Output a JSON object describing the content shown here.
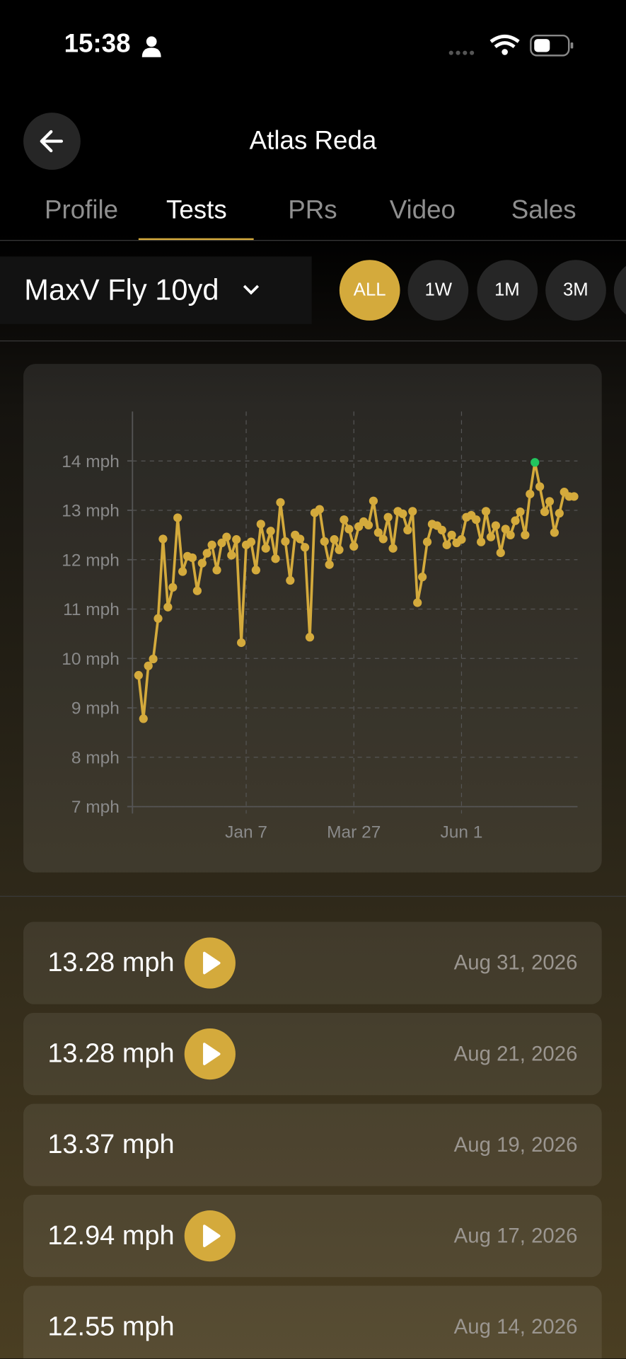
{
  "status_bar": {
    "time": "15:38"
  },
  "header": {
    "title": "Atlas Reda"
  },
  "tabs": [
    "Profile",
    "Tests",
    "PRs",
    "Video",
    "Sales"
  ],
  "active_tab": 1,
  "test_selector": {
    "label": "MaxV Fly 10yd"
  },
  "ranges": [
    "ALL",
    "1W",
    "1M",
    "3M",
    null
  ],
  "active_range": 0,
  "chart_data": {
    "type": "line",
    "color": "#d4aa3c",
    "highlight_color": "#22c55e",
    "grid": true,
    "ylim": [
      7,
      15
    ],
    "yticks": [
      {
        "value": 7,
        "label": "7 mph"
      },
      {
        "value": 8,
        "label": "8 mph"
      },
      {
        "value": 9,
        "label": "9 mph"
      },
      {
        "value": 10,
        "label": "10 mph"
      },
      {
        "value": 11,
        "label": "11 mph"
      },
      {
        "value": 12,
        "label": "12 mph"
      },
      {
        "value": 13,
        "label": "13 mph"
      },
      {
        "value": 14,
        "label": "14 mph"
      }
    ],
    "categories": [
      null,
      null,
      null,
      null,
      null,
      null,
      null,
      null,
      null,
      null,
      null,
      null,
      null,
      null,
      null,
      null,
      null,
      null,
      null,
      null,
      null,
      null,
      "Jan 7",
      null,
      null,
      null,
      null,
      null,
      null,
      null,
      null,
      null,
      null,
      null,
      null,
      null,
      null,
      null,
      null,
      null,
      null,
      null,
      null,
      null,
      "Mar 27",
      null,
      null,
      null,
      null,
      null,
      null,
      null,
      null,
      null,
      null,
      null,
      null,
      null,
      null,
      null,
      null,
      null,
      null,
      null,
      null,
      null,
      "Jun 1",
      null,
      null,
      null,
      null,
      null,
      null,
      null,
      null,
      null,
      null,
      null,
      null,
      null,
      null,
      null,
      null,
      null,
      null,
      null,
      null,
      null,
      null,
      null
    ],
    "values": [
      9.66,
      8.78,
      9.85,
      9.99,
      10.81,
      12.42,
      11.04,
      11.44,
      12.85,
      11.76,
      12.07,
      12.04,
      11.37,
      11.93,
      12.13,
      12.3,
      11.79,
      12.34,
      12.46,
      12.09,
      12.41,
      10.32,
      12.3,
      12.36,
      11.79,
      12.72,
      12.23,
      12.58,
      12.02,
      13.16,
      12.37,
      11.58,
      12.5,
      12.42,
      12.25,
      10.43,
      12.95,
      13.02,
      12.37,
      11.9,
      12.41,
      12.2,
      12.81,
      12.62,
      12.27,
      12.67,
      12.77,
      12.7,
      13.19,
      12.55,
      12.42,
      12.86,
      12.23,
      12.98,
      12.93,
      12.6,
      12.98,
      11.13,
      11.65,
      12.36,
      12.72,
      12.69,
      12.6,
      12.3,
      12.5,
      12.34,
      12.41,
      12.86,
      12.9,
      12.81,
      12.36,
      12.98,
      12.46,
      12.69,
      12.14,
      12.62,
      12.5,
      12.79,
      12.97,
      12.5,
      13.33,
      13.97,
      13.48,
      12.97,
      13.18,
      12.55,
      12.94,
      13.37,
      13.28,
      13.28
    ]
  },
  "results": [
    {
      "value": "13.28 mph",
      "date": "Aug 31, 2026",
      "video": true
    },
    {
      "value": "13.28 mph",
      "date": "Aug 21, 2026",
      "video": true
    },
    {
      "value": "13.37 mph",
      "date": "Aug 19, 2026",
      "video": false
    },
    {
      "value": "12.94 mph",
      "date": "Aug 17, 2026",
      "video": true
    },
    {
      "value": "12.55 mph",
      "date": "Aug 14, 2026",
      "video": false
    }
  ]
}
